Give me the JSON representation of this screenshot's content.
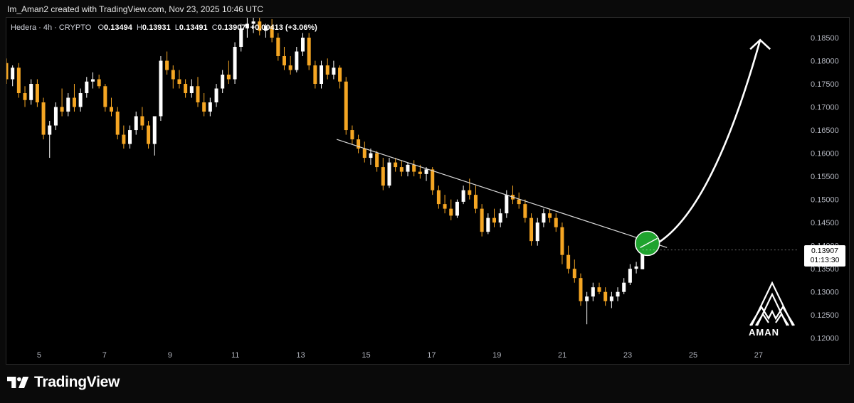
{
  "header": {
    "attribution": "Im_Aman2 created with TradingView.com, Nov 23, 2025 10:46 UTC"
  },
  "legend": {
    "symbol": "Hedera · 4h · CRYPTO",
    "open_label": "O",
    "open": "0.13494",
    "high_label": "H",
    "high": "0.13931",
    "low_label": "L",
    "low": "0.13491",
    "close_label": "C",
    "close": "0.13907",
    "change": "+0.00413 (+3.06%)"
  },
  "price_tag": {
    "price": "0.13907",
    "countdown": "01:13:30"
  },
  "brand": {
    "logo_text": "TradingView",
    "watermark_text": "AMAN"
  },
  "colors": {
    "background": "#000000",
    "up_candle": "#ffffff",
    "down_candle": "#f5a623",
    "trendline": "#d9d9d9",
    "signal_circle": "#1fa32e",
    "arrow": "#ffffff",
    "axis_text": "#b2b5be"
  },
  "chart_data": {
    "type": "candlestick",
    "title": "",
    "ylim": [
      0.1195,
      0.1893
    ],
    "xlim": [
      4.0,
      28.2
    ],
    "y_ticks": [
      "0.12000",
      "0.12500",
      "0.13000",
      "0.13500",
      "0.14000",
      "0.14500",
      "0.15000",
      "0.15500",
      "0.16000",
      "0.16500",
      "0.17000",
      "0.17500",
      "0.18000",
      "0.18500"
    ],
    "x_ticks": [
      "5",
      "7",
      "9",
      "11",
      "13",
      "15",
      "17",
      "19",
      "21",
      "23",
      "25",
      "27"
    ],
    "x_tick_values": [
      5,
      7,
      9,
      11,
      13,
      15,
      17,
      19,
      21,
      23,
      25,
      27
    ],
    "candles_ohlc": [
      [
        0.1795,
        0.1805,
        0.175,
        0.176
      ],
      [
        0.176,
        0.179,
        0.1745,
        0.1785
      ],
      [
        0.1785,
        0.1795,
        0.172,
        0.173
      ],
      [
        0.173,
        0.1745,
        0.17,
        0.1715
      ],
      [
        0.1715,
        0.176,
        0.1705,
        0.175
      ],
      [
        0.175,
        0.176,
        0.17,
        0.171
      ],
      [
        0.171,
        0.172,
        0.163,
        0.164
      ],
      [
        0.164,
        0.167,
        0.159,
        0.166
      ],
      [
        0.166,
        0.171,
        0.165,
        0.17
      ],
      [
        0.17,
        0.174,
        0.168,
        0.169
      ],
      [
        0.169,
        0.173,
        0.168,
        0.172
      ],
      [
        0.172,
        0.175,
        0.169,
        0.17
      ],
      [
        0.17,
        0.174,
        0.169,
        0.173
      ],
      [
        0.173,
        0.1765,
        0.172,
        0.1755
      ],
      [
        0.1755,
        0.1775,
        0.174,
        0.176
      ],
      [
        0.176,
        0.177,
        0.174,
        0.1745
      ],
      [
        0.1745,
        0.175,
        0.169,
        0.17
      ],
      [
        0.17,
        0.172,
        0.168,
        0.169
      ],
      [
        0.169,
        0.17,
        0.163,
        0.164
      ],
      [
        0.164,
        0.166,
        0.161,
        0.162
      ],
      [
        0.162,
        0.166,
        0.161,
        0.165
      ],
      [
        0.165,
        0.169,
        0.164,
        0.168
      ],
      [
        0.168,
        0.17,
        0.165,
        0.166
      ],
      [
        0.166,
        0.167,
        0.161,
        0.162
      ],
      [
        0.162,
        0.164,
        0.1595,
        0.168
      ],
      [
        0.168,
        0.181,
        0.167,
        0.18
      ],
      [
        0.18,
        0.182,
        0.177,
        0.178
      ],
      [
        0.178,
        0.179,
        0.174,
        0.176
      ],
      [
        0.176,
        0.178,
        0.174,
        0.175
      ],
      [
        0.175,
        0.176,
        0.172,
        0.173
      ],
      [
        0.173,
        0.176,
        0.172,
        0.1745
      ],
      [
        0.1745,
        0.1765,
        0.17,
        0.171
      ],
      [
        0.171,
        0.173,
        0.168,
        0.169
      ],
      [
        0.169,
        0.172,
        0.168,
        0.171
      ],
      [
        0.171,
        0.175,
        0.17,
        0.174
      ],
      [
        0.174,
        0.178,
        0.173,
        0.177
      ],
      [
        0.177,
        0.18,
        0.175,
        0.176
      ],
      [
        0.176,
        0.184,
        0.175,
        0.183
      ],
      [
        0.183,
        0.188,
        0.182,
        0.187
      ],
      [
        0.187,
        0.1893,
        0.185,
        0.188
      ],
      [
        0.188,
        0.1893,
        0.186,
        0.1885
      ],
      [
        0.1885,
        0.1893,
        0.1855,
        0.1865
      ],
      [
        0.1865,
        0.188,
        0.185,
        0.1875
      ],
      [
        0.1875,
        0.189,
        0.184,
        0.185
      ],
      [
        0.185,
        0.186,
        0.18,
        0.181
      ],
      [
        0.181,
        0.183,
        0.178,
        0.179
      ],
      [
        0.179,
        0.181,
        0.177,
        0.178
      ],
      [
        0.178,
        0.183,
        0.1775,
        0.182
      ],
      [
        0.182,
        0.186,
        0.181,
        0.185
      ],
      [
        0.185,
        0.186,
        0.178,
        0.179
      ],
      [
        0.179,
        0.18,
        0.174,
        0.175
      ],
      [
        0.175,
        0.18,
        0.174,
        0.179
      ],
      [
        0.179,
        0.1805,
        0.176,
        0.177
      ],
      [
        0.177,
        0.18,
        0.176,
        0.1785
      ],
      [
        0.1785,
        0.179,
        0.174,
        0.1755
      ],
      [
        0.1755,
        0.1765,
        0.164,
        0.165
      ],
      [
        0.165,
        0.166,
        0.162,
        0.163
      ],
      [
        0.163,
        0.164,
        0.16,
        0.161
      ],
      [
        0.161,
        0.1625,
        0.158,
        0.159
      ],
      [
        0.159,
        0.161,
        0.1575,
        0.16
      ],
      [
        0.16,
        0.1605,
        0.156,
        0.157
      ],
      [
        0.157,
        0.159,
        0.152,
        0.153
      ],
      [
        0.153,
        0.159,
        0.1525,
        0.158
      ],
      [
        0.158,
        0.159,
        0.156,
        0.157
      ],
      [
        0.157,
        0.1585,
        0.155,
        0.156
      ],
      [
        0.156,
        0.158,
        0.155,
        0.1575
      ],
      [
        0.1575,
        0.1585,
        0.155,
        0.156
      ],
      [
        0.156,
        0.1575,
        0.1545,
        0.1555
      ],
      [
        0.1555,
        0.157,
        0.154,
        0.1565
      ],
      [
        0.1565,
        0.157,
        0.151,
        0.152
      ],
      [
        0.152,
        0.153,
        0.148,
        0.149
      ],
      [
        0.149,
        0.151,
        0.147,
        0.148
      ],
      [
        0.148,
        0.15,
        0.1455,
        0.1465
      ],
      [
        0.1465,
        0.15,
        0.146,
        0.1495
      ],
      [
        0.1495,
        0.153,
        0.149,
        0.152
      ],
      [
        0.152,
        0.1545,
        0.15,
        0.151
      ],
      [
        0.151,
        0.153,
        0.147,
        0.148
      ],
      [
        0.148,
        0.149,
        0.142,
        0.143
      ],
      [
        0.143,
        0.147,
        0.1425,
        0.146
      ],
      [
        0.146,
        0.148,
        0.144,
        0.145
      ],
      [
        0.145,
        0.148,
        0.144,
        0.147
      ],
      [
        0.147,
        0.152,
        0.146,
        0.151
      ],
      [
        0.151,
        0.153,
        0.149,
        0.15
      ],
      [
        0.15,
        0.1515,
        0.148,
        0.149
      ],
      [
        0.149,
        0.15,
        0.145,
        0.146
      ],
      [
        0.146,
        0.147,
        0.14,
        0.141
      ],
      [
        0.141,
        0.146,
        0.14,
        0.145
      ],
      [
        0.145,
        0.148,
        0.144,
        0.147
      ],
      [
        0.147,
        0.148,
        0.145,
        0.146
      ],
      [
        0.146,
        0.147,
        0.143,
        0.144
      ],
      [
        0.144,
        0.145,
        0.136,
        0.138
      ],
      [
        0.138,
        0.14,
        0.134,
        0.135
      ],
      [
        0.135,
        0.137,
        0.132,
        0.133
      ],
      [
        0.133,
        0.134,
        0.127,
        0.128
      ],
      [
        0.128,
        0.13,
        0.123,
        0.129
      ],
      [
        0.129,
        0.132,
        0.128,
        0.131
      ],
      [
        0.131,
        0.132,
        0.1295,
        0.13
      ],
      [
        0.13,
        0.131,
        0.127,
        0.128
      ],
      [
        0.128,
        0.13,
        0.1265,
        0.129
      ],
      [
        0.129,
        0.131,
        0.128,
        0.13
      ],
      [
        0.13,
        0.133,
        0.1295,
        0.132
      ],
      [
        0.132,
        0.136,
        0.1315,
        0.135
      ],
      [
        0.135,
        0.1365,
        0.134,
        0.1355
      ],
      [
        0.1349,
        0.1393,
        0.1349,
        0.1391
      ]
    ],
    "trendline": {
      "x": [
        14.1,
        24.2
      ],
      "y": [
        0.163,
        0.1396
      ]
    },
    "breakout_marker": {
      "x": 23.6,
      "y": 0.1405
    },
    "projection_arrow": {
      "x": [
        23.9,
        25.6,
        27.05
      ],
      "y": [
        0.1405,
        0.148,
        0.1845
      ]
    },
    "last_price_marker": {
      "y": 0.13907
    }
  }
}
